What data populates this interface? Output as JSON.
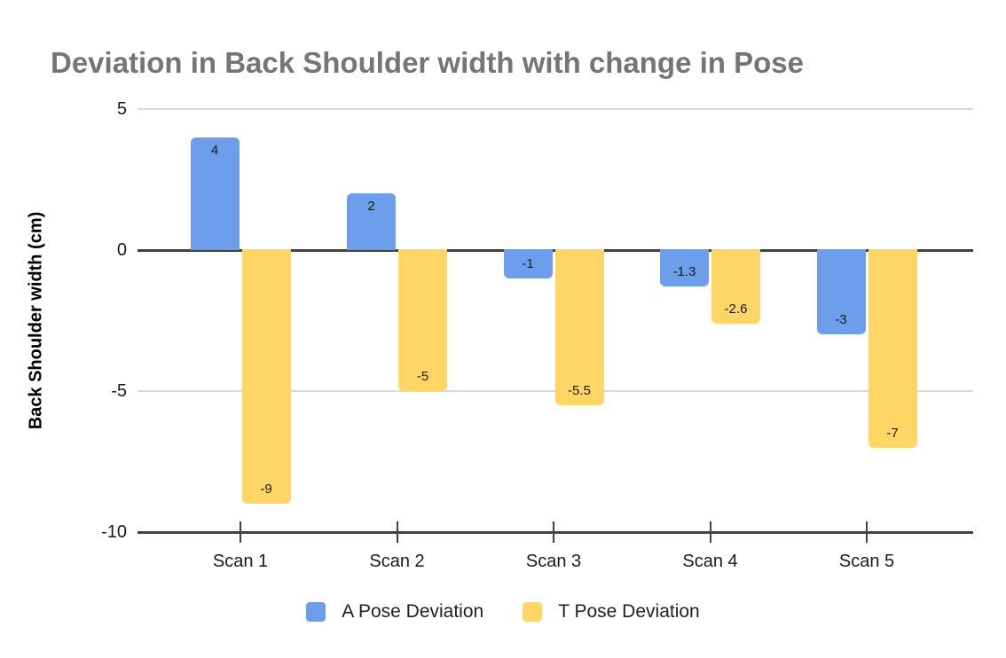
{
  "chart_data": {
    "type": "bar",
    "title": "Deviation in Back Shoulder width with change in Pose",
    "xlabel": "",
    "ylabel": "Back Shoulder width (cm)",
    "categories": [
      "Scan 1",
      "Scan 2",
      "Scan 3",
      "Scan 4",
      "Scan 5"
    ],
    "series": [
      {
        "name": "A Pose Deviation",
        "color": "#6D9EEB",
        "values": [
          4,
          2,
          -1,
          -1.3,
          -3
        ]
      },
      {
        "name": "T Pose Deviation",
        "color": "#FFD666",
        "values": [
          -9,
          -5,
          -5.5,
          -2.6,
          -7
        ]
      }
    ],
    "bar_value_labels": [
      "4",
      "2",
      "-1",
      "-1.3",
      "-3",
      "-9",
      "-5",
      "-5.5",
      "-2.6",
      "-7"
    ],
    "ylim": [
      -10,
      5
    ],
    "yticks": [
      5,
      0,
      -5,
      -10
    ],
    "grid": "horizontal",
    "legend_position": "bottom"
  },
  "colors": {
    "title_text": "#757575",
    "axis_text": "#1a1a1a",
    "gridline_light": "#d9d9d9",
    "gridline_dark": "#424242",
    "background": "#ffffff",
    "series_a": "#6D9EEB",
    "series_t": "#FFD666"
  }
}
